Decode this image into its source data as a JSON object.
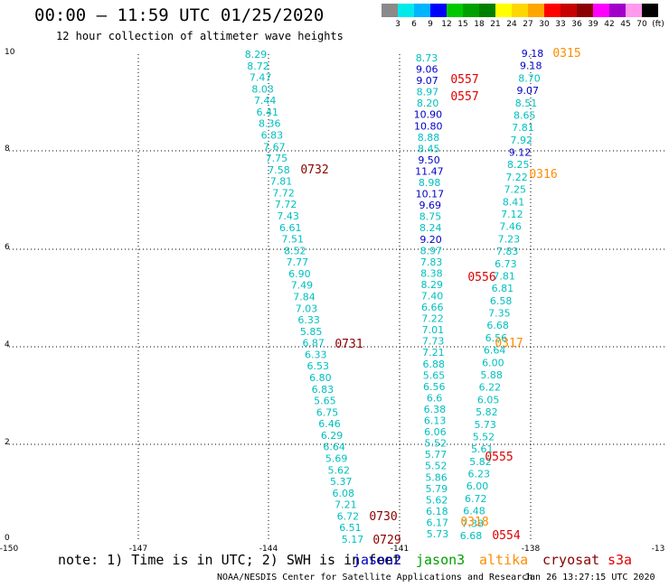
{
  "title": "00:00 – 11:59 UTC 01/25/2020",
  "subtitle": "12 hour collection of altimeter wave heights",
  "legend": {
    "ticks": [
      "3",
      "6",
      "9",
      "12",
      "15",
      "18",
      "21",
      "24",
      "27",
      "30",
      "33",
      "36",
      "39",
      "42",
      "45",
      "70",
      "(ft)"
    ],
    "colors": [
      "#8a8a8a",
      "#00eaea",
      "#00b4ff",
      "#0000ff",
      "#00c800",
      "#00a000",
      "#008000",
      "#ffff00",
      "#ffd700",
      "#ffa500",
      "#ff0000",
      "#c80000",
      "#8b0000",
      "#ff00ff",
      "#a000c8",
      "#ff99ee",
      "#000000"
    ]
  },
  "axes": {
    "x_ticks": [
      "-150",
      "-147",
      "-144",
      "-141",
      "-138",
      "-13"
    ],
    "y_ticks": [
      "0",
      "2",
      "4",
      "6",
      "8",
      "10"
    ]
  },
  "note": {
    "prefix": "note: 1) Time is in UTC; 2) SWH is in feet",
    "jason2": "jason2",
    "jason3": "jason3",
    "altika": "altika",
    "cryosat": "cryosat",
    "s3a": "s3a"
  },
  "footer": {
    "left": "NOAA/NESDIS Center for Satellite Applications and Research",
    "right": "Jan 26 13:27:15 UTC 2020"
  },
  "track_colors": {
    "jason2": "#0000c8",
    "jason3": "#00bfbf",
    "altika": "#ff8c00",
    "cryosat": "#8b0000",
    "s3a": "#e00000",
    "light": "#1aa0e0"
  },
  "time_labels": [
    {
      "text": "0732",
      "color": "#8b0000"
    },
    {
      "text": "0731",
      "color": "#8b0000"
    },
    {
      "text": "0730",
      "color": "#8b0000"
    },
    {
      "text": "0729",
      "color": "#8b0000"
    },
    {
      "text": "0557",
      "color": "#e00000"
    },
    {
      "text": "0557",
      "color": "#e00000"
    },
    {
      "text": "0556",
      "color": "#e00000"
    },
    {
      "text": "0555",
      "color": "#e00000"
    },
    {
      "text": "0554",
      "color": "#e00000"
    },
    {
      "text": "0315",
      "color": "#ff8c00"
    },
    {
      "text": "0316",
      "color": "#ff8c00"
    },
    {
      "text": "0317",
      "color": "#ff8c00"
    },
    {
      "text": "0318",
      "color": "#ff8c00"
    }
  ],
  "track_a": [
    "8.29",
    "8.72",
    "7.47",
    "8.03",
    "7.44",
    "6.41",
    "8.36",
    "6.83",
    "7.67",
    "7.75",
    "7.58",
    "7.81",
    "7.72",
    "7.72",
    "7.43",
    "6.61",
    "7.51",
    "8.52",
    "7.77",
    "6.90",
    "7.49",
    "7.84",
    "7.03",
    "6.33",
    "5.85",
    "6.87",
    "6.33",
    "6.53",
    "6.80",
    "6.83",
    "5.65",
    "6.75",
    "6.46",
    "6.29",
    "6.64",
    "5.69",
    "5.62",
    "5.37",
    "6.08",
    "7.21",
    "6.72",
    "6.51",
    "5.17"
  ],
  "track_b": [
    "8.73",
    "9.06",
    "9.07",
    "8.97",
    "8.20",
    "10.90",
    "10.80",
    "8.88",
    "8.45",
    "9.50",
    "11.47",
    "8.98",
    "10.17",
    "9.69",
    "8.75",
    "8.24",
    "9.20",
    "8.97",
    "7.83",
    "8.38",
    "8.29",
    "7.40",
    "6.66",
    "7.22",
    "7.01",
    "7.73",
    "7.21",
    "6.88",
    "5.65",
    "6.56",
    "6.6",
    "6.38",
    "6.13",
    "6.06",
    "5.52",
    "5.77",
    "5.52",
    "5.86",
    "5.79",
    "5.62",
    "6.18",
    "6.17",
    "5.73"
  ],
  "track_c": [
    "9.18",
    "9.18",
    "8.70",
    "9.07",
    "8.51",
    "8.65",
    "7.81",
    "7.92",
    "9.12",
    "8.25",
    "7.22",
    "7.25",
    "8.41",
    "7.12",
    "7.46",
    "7.23",
    "7.83",
    "6.73",
    "7.81",
    "6.81",
    "6.58",
    "7.35",
    "6.68",
    "6.56",
    "6.64",
    "6.00",
    "5.88",
    "6.22",
    "6.05",
    "5.82",
    "5.73",
    "5.52",
    "5.61",
    "5.82",
    "6.23",
    "6.00",
    "6.72",
    "6.48",
    "7.38",
    "6.68"
  ]
}
